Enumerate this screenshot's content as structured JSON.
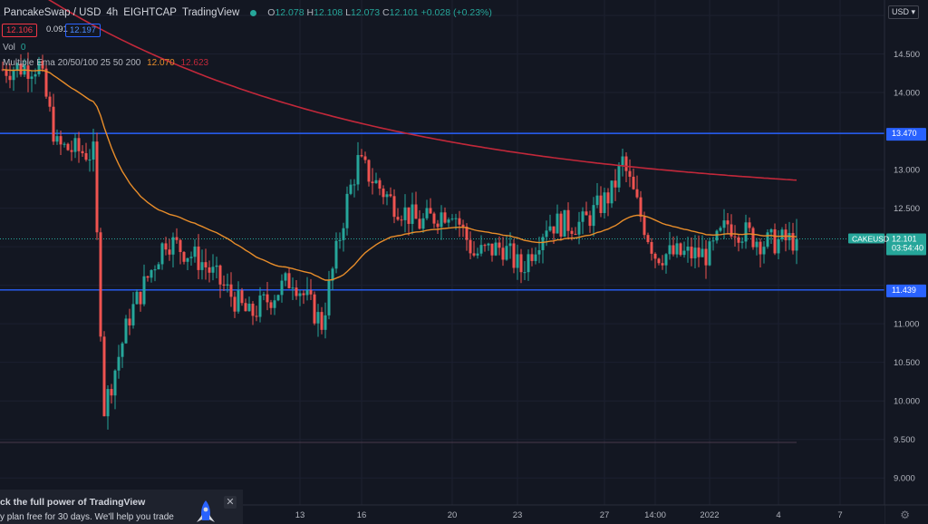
{
  "header": {
    "symbol": "PancakeSwap / USD",
    "interval": "4h",
    "exchange": "EIGHTCAP",
    "source": "TradingView",
    "ohlc": {
      "o_label": "O",
      "o": "12.078",
      "h_label": "H",
      "h": "12.108",
      "l_label": "L",
      "l": "12.073",
      "c_label": "C",
      "c": "12.101",
      "change": "+0.028 (+0.23%)"
    }
  },
  "trade": {
    "sell": "12.106",
    "spread": "0.091",
    "buy": "12.197"
  },
  "indicators": {
    "vol_label": "Vol",
    "vol_value": "0",
    "ema_label": "Multiple Ema 20/50/100 25 50 200",
    "ema_value_1": "12.070",
    "ema_value_2": "12.623"
  },
  "currency_button": "USD",
  "promo": {
    "line1": "ck the full power of TradingView",
    "line2": "y plan free for 30 days. We'll help you trade",
    "close": "✕"
  },
  "icons": {
    "settings": "gear-icon",
    "rocket": "rocket-icon",
    "close": "close-icon",
    "currency_dropdown": "chevron-down-icon"
  },
  "colors": {
    "background": "#131722",
    "up": "#26a69a",
    "down": "#ef5350",
    "ema_fast": "#e88d2a",
    "ema_slow": "#c2283a",
    "hline": "#2962ff",
    "label_current": "#26a69a"
  },
  "chart_data": {
    "type": "candlestick",
    "symbol": "CAKEUSD",
    "ylim": [
      8.65,
      15.2
    ],
    "y_ticks": [
      "14.500",
      "14.000",
      "13.000",
      "12.500",
      "11.000",
      "10.500",
      "10.000",
      "9.500",
      "9.000"
    ],
    "x_ticks": [
      "13",
      "16",
      "20",
      "23",
      "27",
      "14:00",
      "2022",
      "4",
      "7"
    ],
    "x_tick_index": [
      82,
      99,
      124,
      142,
      166,
      180,
      195,
      214,
      231
    ],
    "horizontal_lines": [
      {
        "label": "13.470",
        "value": 13.47
      },
      {
        "label": "11.439",
        "value": 11.439
      }
    ],
    "current_price": {
      "label": "CAKEUSD",
      "value_label": "12.101",
      "countdown": "03:54:40",
      "value": 12.101
    },
    "ema_fast_last": 12.07,
    "ema_slow_last": 12.623,
    "candle_count": 220,
    "keypoints": [
      [
        0,
        14.3
      ],
      [
        10,
        14.35
      ],
      [
        15,
        13.3
      ],
      [
        25,
        13.2
      ],
      [
        28,
        9.9
      ],
      [
        35,
        11.1
      ],
      [
        45,
        12.1
      ],
      [
        55,
        11.8
      ],
      [
        68,
        11.1
      ],
      [
        80,
        11.6
      ],
      [
        88,
        11.0
      ],
      [
        95,
        12.6
      ],
      [
        98,
        13.1
      ],
      [
        107,
        12.6
      ],
      [
        115,
        12.3
      ],
      [
        124,
        12.5
      ],
      [
        130,
        11.9
      ],
      [
        138,
        12.0
      ],
      [
        143,
        11.7
      ],
      [
        150,
        12.3
      ],
      [
        160,
        12.3
      ],
      [
        168,
        12.7
      ],
      [
        171,
        13.1
      ],
      [
        176,
        12.4
      ],
      [
        180,
        11.9
      ],
      [
        195,
        11.9
      ],
      [
        200,
        12.3
      ],
      [
        210,
        12.05
      ],
      [
        220,
        12.1
      ]
    ]
  }
}
